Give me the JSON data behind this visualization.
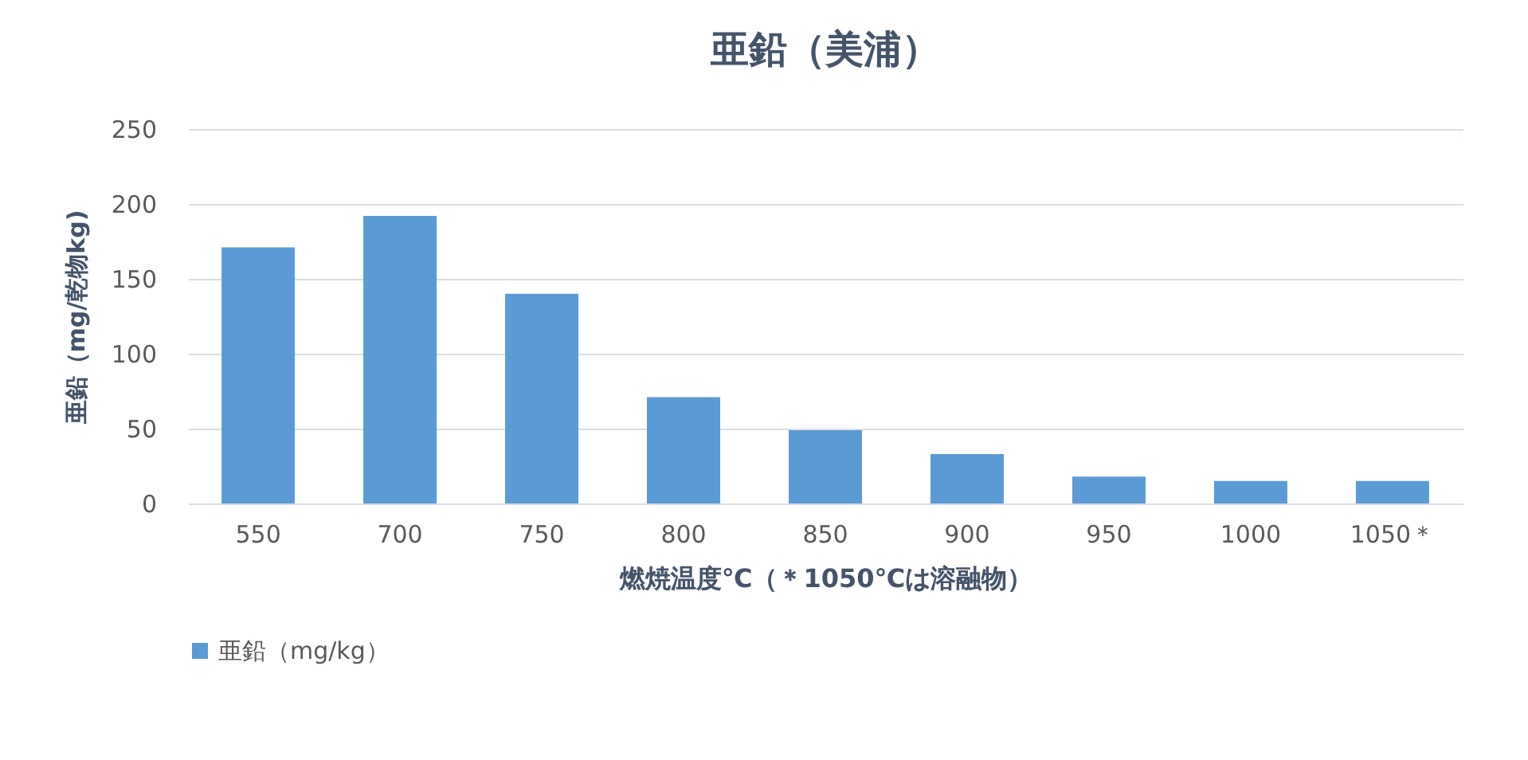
{
  "chart_data": {
    "type": "bar",
    "title": "亜鉛（美浦）",
    "xlabel": "燃焼温度℃（＊1050℃は溶融物）",
    "ylabel": "亜鉛（mg/乾物kg)",
    "categories": [
      "550",
      "700",
      "750",
      "800",
      "850",
      "900",
      "950",
      "1000",
      "1050＊"
    ],
    "series": [
      {
        "name": "亜鉛（mg/kg）",
        "color": "#5b9bd5",
        "values": [
          171,
          192,
          140,
          71,
          49,
          33,
          18,
          15,
          15
        ]
      }
    ],
    "ylim": [
      0,
      250
    ],
    "yticks": [
      0,
      50,
      100,
      150,
      200,
      250
    ],
    "grid": "y",
    "legend": "bottom"
  }
}
